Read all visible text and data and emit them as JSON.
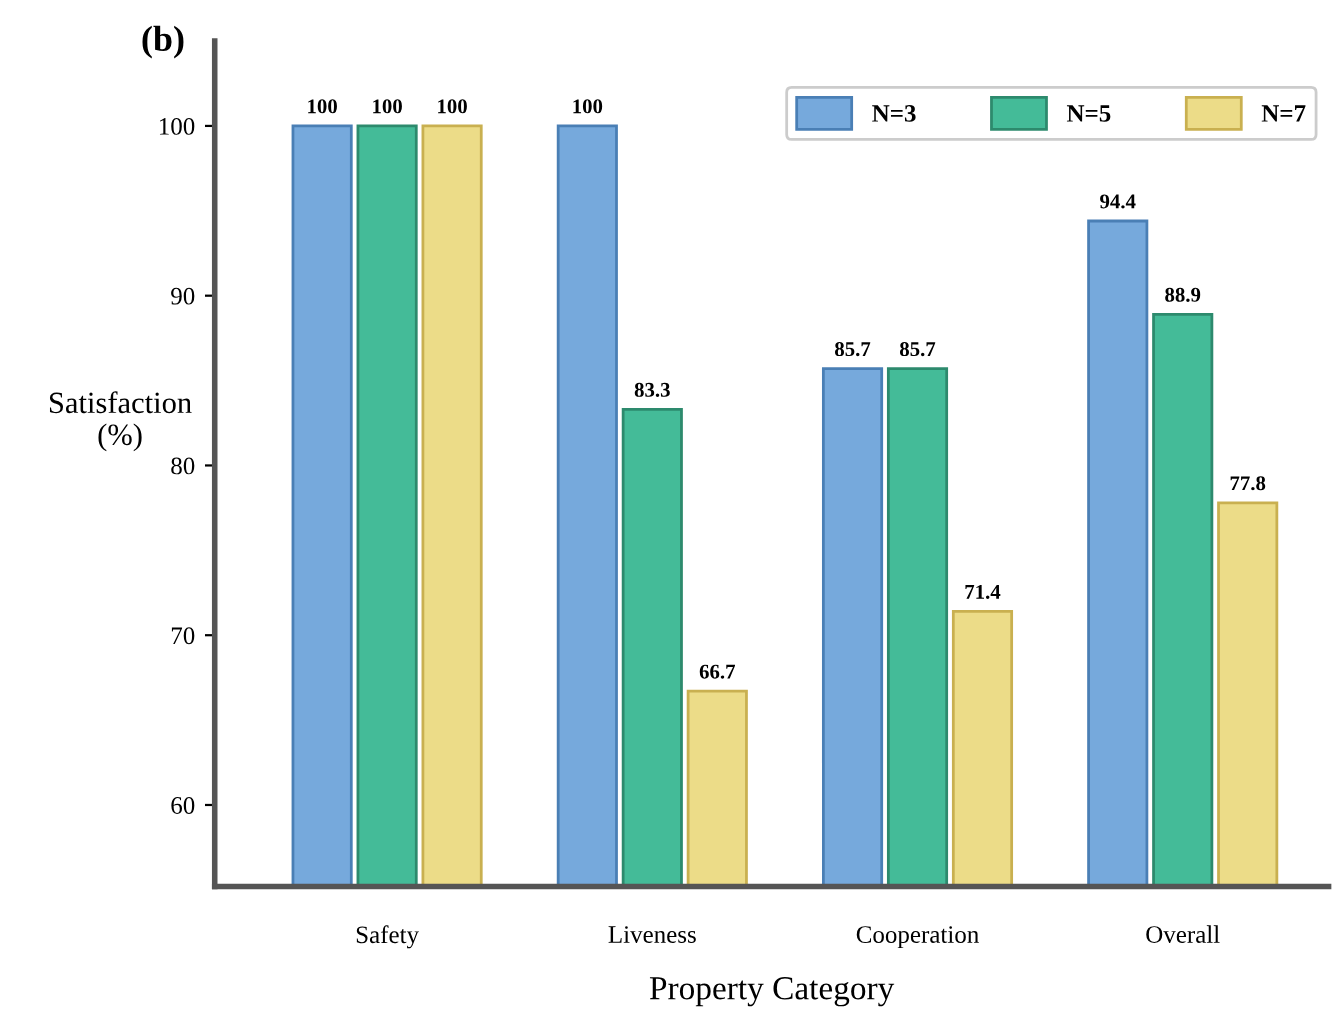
{
  "chart_data": {
    "type": "bar",
    "title": "(b)",
    "xlabel": "Property Category",
    "ylabel": "Satisfaction\n(%)",
    "categories": [
      "Safety",
      "Liveness",
      "Cooperation",
      "Overall"
    ],
    "series": [
      {
        "name": "N=3",
        "color": "#76a9dc",
        "values": [
          100,
          100,
          85.7,
          94.4
        ]
      },
      {
        "name": "N=5",
        "color": "#44bb98",
        "values": [
          100,
          83.3,
          85.7,
          88.9
        ]
      },
      {
        "name": "N=7",
        "color": "#ecdc88",
        "values": [
          100,
          66.7,
          71.4,
          77.8
        ]
      }
    ],
    "ylim": [
      55.2,
      105
    ],
    "yticks": [
      60,
      70,
      80,
      90,
      100
    ],
    "data_labels": true,
    "grid": false,
    "legend": "top right"
  }
}
